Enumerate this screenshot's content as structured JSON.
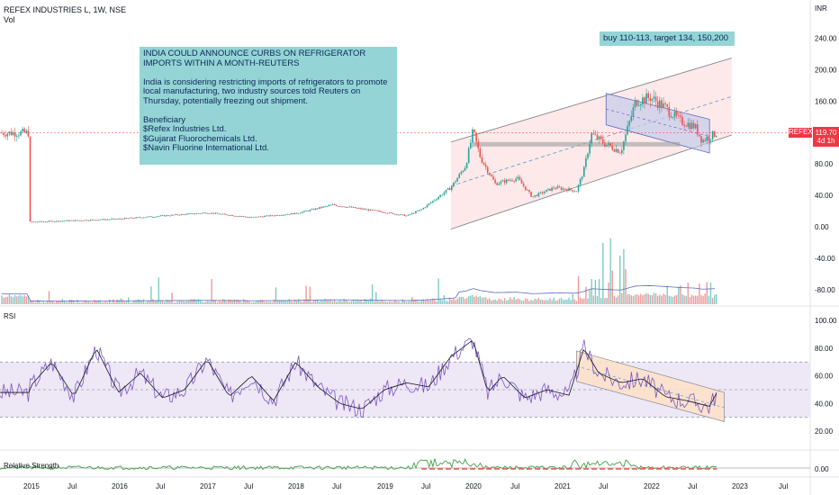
{
  "header": {
    "symbol_line": "REFEX INDUSTRIES L, 1W, NSE",
    "volume_label": "Vol"
  },
  "panes": {
    "rsi_label": "RSI",
    "rs_label": "Relative Strength"
  },
  "price_axis": {
    "currency": "INR",
    "ticks": [
      "240.00",
      "200.00",
      "160.00",
      "120.00",
      "80.00",
      "40.00",
      "0.00",
      "-40.00",
      "-80.00"
    ],
    "last_price": "119.70",
    "countdown": "4d 1h",
    "ticker_tag": "REFEX"
  },
  "rsi_axis": {
    "ticks": [
      "100.00",
      "80.00",
      "60.00",
      "40.00",
      "20.00"
    ]
  },
  "rs_axis": {
    "ticks": [
      "0.00"
    ]
  },
  "time_axis": {
    "labels": [
      "2015",
      "Jul",
      "2016",
      "Jul",
      "2017",
      "Jul",
      "2018",
      "Jul",
      "2019",
      "Jul",
      "2020",
      "Jul",
      "2021",
      "Jul",
      "2022",
      "Jul",
      "2023",
      "Jul"
    ]
  },
  "annotations": {
    "news_note": "INDIA COULD ANNOUNCE CURBS ON REFRIGERATOR IMPORTS WITHIN A MONTH-REUTERS\n\nIndia is considering restricting imports of refrigerators to promote local manufacturing, two industry sources told Reuters on Thursday, potentially freezing out shipment.\n\nBeneficiary\n$Refex Industries Ltd.\n$Gujarat Fluorochemicals Ltd.\n$Navin Fluorine International Ltd.",
    "trade_note": "buy 110-113, target 134, 150,200"
  },
  "colors": {
    "up": "#26a69a",
    "down": "#ef5350",
    "rsi_line": "#7e57c2",
    "rsi_band": "#ede7f6",
    "channel_fill": "#fde3e3",
    "flag_fill": "#c5cae9",
    "rsi_channel_fill": "#fbe0c8",
    "rs_line": "#43a047",
    "last_price": "#f23645"
  },
  "chart_data": {
    "type": "candlestick",
    "symbol": "REFEX INDUSTRIES L",
    "interval": "1W",
    "exchange": "NSE",
    "ylim": [
      -80,
      240
    ],
    "last": 119.7,
    "price_path": [
      [
        "2015-01",
        6
      ],
      [
        "2015-07",
        8
      ],
      [
        "2016-01",
        10
      ],
      [
        "2016-07",
        14
      ],
      [
        "2017-01",
        18
      ],
      [
        "2017-07",
        12
      ],
      [
        "2018-01",
        17
      ],
      [
        "2018-06",
        28
      ],
      [
        "2018-12",
        20
      ],
      [
        "2019-04",
        14
      ],
      [
        "2019-06",
        22
      ],
      [
        "2019-10",
        50
      ],
      [
        "2019-12",
        78
      ],
      [
        "2020-01",
        122
      ],
      [
        "2020-02",
        88
      ],
      [
        "2020-04",
        55
      ],
      [
        "2020-07",
        62
      ],
      [
        "2020-09",
        38
      ],
      [
        "2020-12",
        50
      ],
      [
        "2021-03",
        46
      ],
      [
        "2021-04",
        72
      ],
      [
        "2021-05",
        118
      ],
      [
        "2021-07",
        105
      ],
      [
        "2021-09",
        96
      ],
      [
        "2021-11",
        160
      ],
      [
        "2022-01",
        165
      ],
      [
        "2022-03",
        152
      ],
      [
        "2022-05",
        135
      ],
      [
        "2022-07",
        128
      ],
      [
        "2022-08",
        110
      ],
      [
        "2022-10",
        119.7
      ]
    ],
    "rsi": {
      "ylim": [
        0,
        100
      ],
      "bands": [
        30,
        70
      ],
      "mid": 50,
      "path": [
        [
          "2015-01",
          52
        ],
        [
          "2015-04",
          70
        ],
        [
          "2015-07",
          45
        ],
        [
          "2015-10",
          80
        ],
        [
          "2016-01",
          48
        ],
        [
          "2016-04",
          62
        ],
        [
          "2016-07",
          44
        ],
        [
          "2016-10",
          50
        ],
        [
          "2017-01",
          72
        ],
        [
          "2017-04",
          45
        ],
        [
          "2017-07",
          60
        ],
        [
          "2017-10",
          42
        ],
        [
          "2018-01",
          70
        ],
        [
          "2018-04",
          52
        ],
        [
          "2018-07",
          40
        ],
        [
          "2018-10",
          36
        ],
        [
          "2019-01",
          50
        ],
        [
          "2019-04",
          55
        ],
        [
          "2019-07",
          52
        ],
        [
          "2019-10",
          74
        ],
        [
          "2020-01",
          86
        ],
        [
          "2020-03",
          48
        ],
        [
          "2020-05",
          60
        ],
        [
          "2020-08",
          44
        ],
        [
          "2020-11",
          50
        ],
        [
          "2021-02",
          46
        ],
        [
          "2021-04",
          80
        ],
        [
          "2021-06",
          62
        ],
        [
          "2021-09",
          55
        ],
        [
          "2021-12",
          58
        ],
        [
          "2022-03",
          45
        ],
        [
          "2022-06",
          42
        ],
        [
          "2022-09",
          38
        ],
        [
          "2022-10",
          48
        ]
      ]
    }
  }
}
